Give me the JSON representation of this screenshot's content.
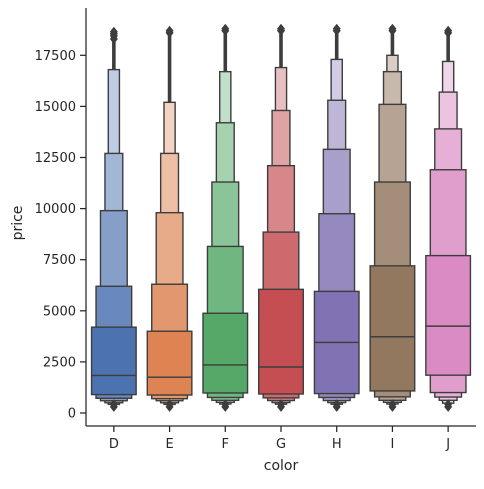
{
  "chart_data": {
    "type": "boxen",
    "xlabel": "color",
    "ylabel": "price",
    "categories": [
      "D",
      "E",
      "F",
      "G",
      "H",
      "I",
      "J"
    ],
    "colors": [
      "#4c72b0",
      "#dd8452",
      "#55a868",
      "#c44e52",
      "#8172b3",
      "#937860",
      "#da8bc3"
    ],
    "ylim": [
      -600,
      19500
    ],
    "yticks": [
      0,
      2500,
      5000,
      7500,
      10000,
      12500,
      15000,
      17500
    ],
    "yticklabels": [
      "0",
      "2500",
      "5000",
      "7500",
      "10000",
      "12500",
      "15000",
      "17500"
    ],
    "grid": false,
    "series": [
      {
        "category": "D",
        "median": 1840,
        "boxes": [
          [
            900,
            4200
          ],
          [
            720,
            6200
          ],
          [
            600,
            9900
          ],
          [
            500,
            12700
          ],
          [
            420,
            16800
          ]
        ],
        "outliers_low": [
          300,
          430
        ],
        "outliers_high_range": [
          16800,
          18700
        ],
        "outliers_high": [
          18300,
          18450,
          18550,
          18650
        ]
      },
      {
        "category": "E",
        "median": 1750,
        "boxes": [
          [
            880,
            4000
          ],
          [
            700,
            6300
          ],
          [
            600,
            9800
          ],
          [
            500,
            12700
          ],
          [
            420,
            15200
          ]
        ],
        "outliers_low": [
          300,
          430
        ],
        "outliers_high_range": [
          15200,
          18700
        ],
        "outliers_high": [
          18600,
          18700
        ]
      },
      {
        "category": "F",
        "median": 2350,
        "boxes": [
          [
            980,
            4880
          ],
          [
            760,
            8150
          ],
          [
            620,
            11300
          ],
          [
            520,
            14200
          ],
          [
            440,
            16700
          ]
        ],
        "outliers_low": [
          300,
          430
        ],
        "outliers_high_range": [
          16700,
          18800
        ],
        "outliers_high": [
          18700,
          18800
        ]
      },
      {
        "category": "G",
        "median": 2250,
        "boxes": [
          [
            930,
            6050
          ],
          [
            740,
            8850
          ],
          [
            610,
            12100
          ],
          [
            510,
            14800
          ],
          [
            430,
            16900
          ]
        ],
        "outliers_low": [
          300,
          430
        ],
        "outliers_high_range": [
          16900,
          18800
        ],
        "outliers_high": [
          18700,
          18800
        ]
      },
      {
        "category": "H",
        "median": 3450,
        "boxes": [
          [
            950,
            5950
          ],
          [
            760,
            9750
          ],
          [
            610,
            12900
          ],
          [
            510,
            15300
          ],
          [
            430,
            17300
          ]
        ],
        "outliers_low": [
          300,
          430
        ],
        "outliers_high_range": [
          17300,
          18800
        ],
        "outliers_high": [
          18700,
          18800
        ]
      },
      {
        "category": "I",
        "median": 3730,
        "boxes": [
          [
            1080,
            7200
          ],
          [
            790,
            11300
          ],
          [
            620,
            15100
          ],
          [
            520,
            16700
          ],
          [
            440,
            17500
          ]
        ],
        "outliers_low": [
          300,
          430
        ],
        "outliers_high_range": [
          17500,
          18800
        ],
        "outliers_high": [
          18700,
          18800
        ]
      },
      {
        "category": "J",
        "median": 4250,
        "boxes": [
          [
            1850,
            7700
          ],
          [
            1000,
            11900
          ],
          [
            780,
            13900
          ],
          [
            620,
            15700
          ],
          [
            480,
            17200
          ]
        ],
        "outliers_low": [
          300,
          430
        ],
        "outliers_high_range": [
          17200,
          18700
        ],
        "outliers_high": [
          18600,
          18700
        ]
      }
    ]
  }
}
